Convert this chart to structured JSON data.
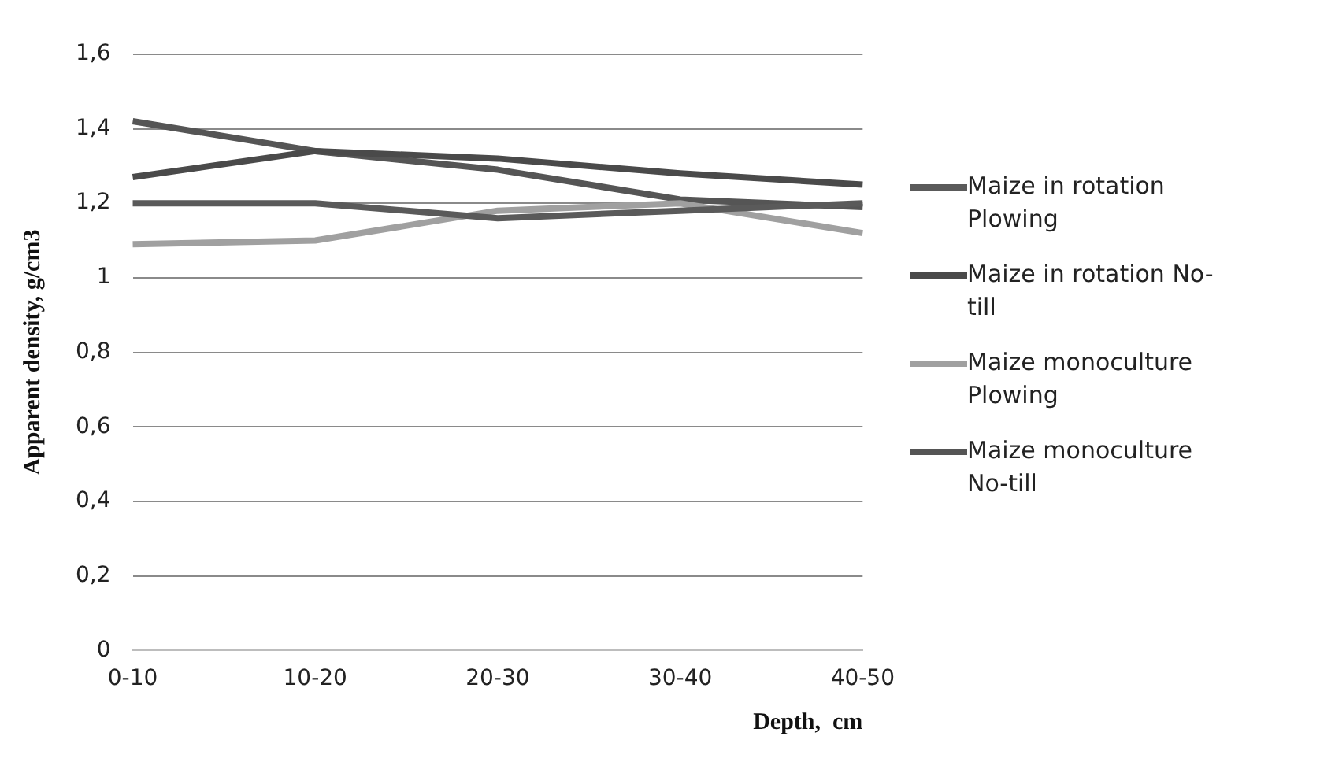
{
  "chart_data": {
    "type": "line",
    "xlabel": "Depth,  cm",
    "ylabel": "Apparent density, g/cm3",
    "categories": [
      "0-10",
      "10-20",
      "20-30",
      "30-40",
      "40-50"
    ],
    "series": [
      {
        "name": "Maize in rotation Plowing",
        "color": "#5a5a5a",
        "values": [
          1.2,
          1.2,
          1.16,
          1.18,
          1.2
        ]
      },
      {
        "name": "Maize in rotation No-till",
        "color": "#4a4a4a",
        "values": [
          1.27,
          1.34,
          1.32,
          1.28,
          1.25
        ]
      },
      {
        "name": "Maize monoculture Plowing",
        "color": "#a0a0a0",
        "values": [
          1.09,
          1.1,
          1.18,
          1.2,
          1.12
        ]
      },
      {
        "name": "Maize monoculture No-till",
        "color": "#555555",
        "values": [
          1.42,
          1.34,
          1.29,
          1.21,
          1.19
        ]
      }
    ],
    "ylim": [
      0,
      1.6
    ],
    "yticks": [
      0,
      {
        "value": 0.2,
        "label": "0,2"
      },
      {
        "value": 0.4,
        "label": "0,4"
      },
      {
        "value": 0.6,
        "label": "0,6"
      },
      {
        "value": 0.8,
        "label": "0,8"
      },
      1,
      {
        "value": 1.2,
        "label": "1,2"
      },
      {
        "value": 1.4,
        "label": "1,4"
      },
      {
        "value": 1.6,
        "label": "1,6"
      }
    ],
    "grid": "y",
    "legend": "right",
    "marker": "none",
    "line_style": "solid"
  }
}
